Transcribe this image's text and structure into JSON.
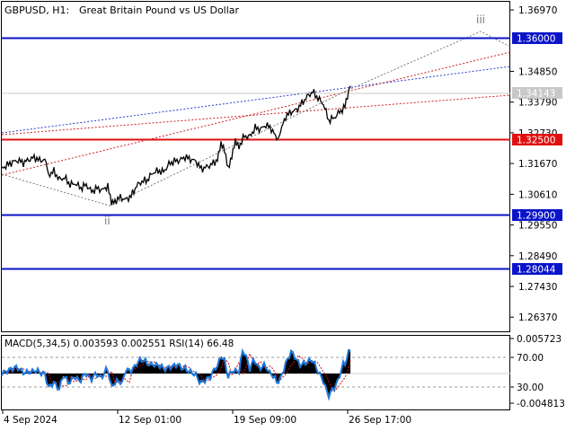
{
  "header": {
    "symbol": "GBPUSD, H1:",
    "description": "Great Britain Pound vs US Dollar"
  },
  "wave_labels": {
    "wave_ii": "ii",
    "wave_iii": "iii"
  },
  "colors": {
    "level_blue": "#0a14c8",
    "level_red": "#e01010",
    "current_price_bg": "#c8c8c8",
    "dotted_blue": "#2a3cc8",
    "dotted_red": "#d02020",
    "dotted_gray": "#7a7a7a",
    "macd_hist": "#000000",
    "rsi_line": "#1e78dc",
    "signal_line": "#d01010"
  },
  "price_axis": {
    "ticks": [
      "1.36970",
      "1.34850",
      "1.33790",
      "1.32730",
      "1.31670",
      "1.30610",
      "1.29550",
      "1.28490",
      "1.27430",
      "1.26370"
    ]
  },
  "levels": [
    {
      "name": "upper-blue",
      "value": "1.36000",
      "color": "blue"
    },
    {
      "name": "red",
      "value": "1.32500",
      "color": "red"
    },
    {
      "name": "lower-blue",
      "value": "1.29900",
      "color": "blue"
    },
    {
      "name": "bottom-blue",
      "value": "1.28044",
      "color": "blue"
    }
  ],
  "current_price": "1.34143",
  "indicator": {
    "label": "MACD(5,34,5) 0.003593 0.002551 RSI(14) 66.48",
    "ticks": [
      "0.005723",
      "70.00",
      "30.00",
      "-0.004813"
    ]
  },
  "time_axis": {
    "labels": [
      "4 Sep 2024",
      "12 Sep 01:00",
      "19 Sep 09:00",
      "26 Sep 17:00"
    ]
  },
  "chart_data": {
    "type": "line",
    "symbol": "GBPUSD",
    "timeframe": "H1",
    "x_labels": [
      "4 Sep 2024",
      "12 Sep 01:00",
      "19 Sep 09:00",
      "26 Sep 17:00"
    ],
    "ylim": [
      1.2585,
      1.3725
    ],
    "price_path": [
      [
        0,
        1.315
      ],
      [
        6,
        1.3162
      ],
      [
        12,
        1.3172
      ],
      [
        18,
        1.3178
      ],
      [
        24,
        1.317
      ],
      [
        30,
        1.318
      ],
      [
        36,
        1.3188
      ],
      [
        42,
        1.3178
      ],
      [
        48,
        1.318
      ],
      [
        52,
        1.3128
      ],
      [
        58,
        1.314
      ],
      [
        64,
        1.3112
      ],
      [
        70,
        1.3118
      ],
      [
        76,
        1.3094
      ],
      [
        82,
        1.3098
      ],
      [
        88,
        1.3082
      ],
      [
        94,
        1.3094
      ],
      [
        100,
        1.307
      ],
      [
        106,
        1.3082
      ],
      [
        112,
        1.3075
      ],
      [
        118,
        1.309
      ],
      [
        122,
        1.3025
      ],
      [
        126,
        1.3038
      ],
      [
        132,
        1.305
      ],
      [
        138,
        1.3042
      ],
      [
        144,
        1.3055
      ],
      [
        150,
        1.309
      ],
      [
        156,
        1.3105
      ],
      [
        162,
        1.311
      ],
      [
        168,
        1.3135
      ],
      [
        174,
        1.3142
      ],
      [
        180,
        1.3138
      ],
      [
        186,
        1.3165
      ],
      [
        192,
        1.3175
      ],
      [
        198,
        1.3178
      ],
      [
        204,
        1.319
      ],
      [
        210,
        1.3182
      ],
      [
        216,
        1.3175
      ],
      [
        222,
        1.3148
      ],
      [
        228,
        1.3155
      ],
      [
        234,
        1.3165
      ],
      [
        240,
        1.318
      ],
      [
        244,
        1.323
      ],
      [
        248,
        1.3215
      ],
      [
        252,
        1.3155
      ],
      [
        256,
        1.319
      ],
      [
        260,
        1.324
      ],
      [
        264,
        1.3225
      ],
      [
        270,
        1.3262
      ],
      [
        276,
        1.326
      ],
      [
        282,
        1.329
      ],
      [
        288,
        1.3285
      ],
      [
        294,
        1.33
      ],
      [
        300,
        1.3288
      ],
      [
        306,
        1.3252
      ],
      [
        310,
        1.3275
      ],
      [
        316,
        1.333
      ],
      [
        322,
        1.3345
      ],
      [
        328,
        1.3352
      ],
      [
        334,
        1.3375
      ],
      [
        340,
        1.3398
      ],
      [
        346,
        1.3415
      ],
      [
        352,
        1.3392
      ],
      [
        358,
        1.3372
      ],
      [
        364,
        1.3315
      ],
      [
        370,
        1.3325
      ],
      [
        376,
        1.3345
      ],
      [
        382,
        1.3362
      ],
      [
        386,
        1.3414
      ],
      [
        388,
        1.3435
      ]
    ],
    "indicator_series": [
      {
        "name": "MACD(5,34,5)",
        "last": 0.003593,
        "signal_last": 0.002551
      },
      {
        "name": "RSI(14)",
        "last": 66.48,
        "levels": [
          70,
          30
        ]
      }
    ]
  }
}
